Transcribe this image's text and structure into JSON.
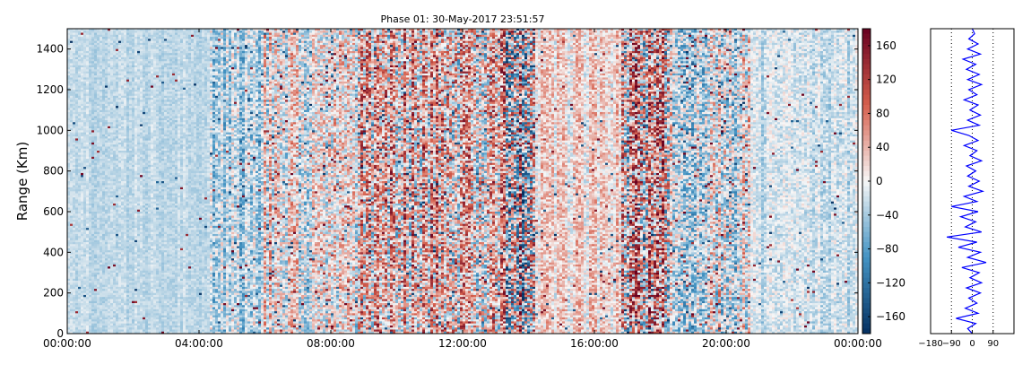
{
  "chart_data": [
    {
      "type": "heatmap",
      "title": "Phase 01: 30-May-2017 23:51:57",
      "xlabel": "",
      "ylabel": "Range (Km)",
      "xlim": [
        "00:00:00",
        "00:00:00"
      ],
      "ylim": [
        0,
        1500
      ],
      "x_ticks": [
        "00:00:00",
        "04:00:00",
        "08:00:00",
        "12:00:00",
        "16:00:00",
        "20:00:00",
        "00:00:00"
      ],
      "y_ticks": [
        0,
        200,
        400,
        600,
        800,
        1000,
        1200,
        1400
      ],
      "colormap": "RdBu_r",
      "color_min": "#053061",
      "color_mid": "#f7f7f7",
      "color_max": "#67001f",
      "colorbar": {
        "range": [
          -180,
          180
        ],
        "ticks": [
          -160,
          -120,
          -80,
          -40,
          0,
          40,
          80,
          120,
          160
        ]
      },
      "column_activity": [
        {
          "from_hour": 0,
          "to_hour": 4.3,
          "level": 0.1,
          "bias": -0.25
        },
        {
          "from_hour": 4.3,
          "to_hour": 6.0,
          "level": 0.35,
          "bias": -0.3
        },
        {
          "from_hour": 6.0,
          "to_hour": 8.8,
          "level": 0.45,
          "bias": 0.05
        },
        {
          "from_hour": 8.8,
          "to_hour": 13.3,
          "level": 0.65,
          "bias": 0.3
        },
        {
          "from_hour": 13.3,
          "to_hour": 14.2,
          "level": 1.0,
          "bias": 0.0
        },
        {
          "from_hour": 14.2,
          "to_hour": 16.8,
          "level": 0.3,
          "bias": 0.15
        },
        {
          "from_hour": 16.8,
          "to_hour": 18.3,
          "level": 0.85,
          "bias": 0.4
        },
        {
          "from_hour": 18.3,
          "to_hour": 20.7,
          "level": 0.5,
          "bias": -0.1
        },
        {
          "from_hour": 20.7,
          "to_hour": 24.0,
          "level": 0.2,
          "bias": -0.2
        }
      ]
    },
    {
      "type": "line",
      "title": "",
      "xlabel": "",
      "ylabel": "",
      "xlim": [
        -180,
        180
      ],
      "ylim": [
        0,
        1500
      ],
      "x_ticks": [
        "−180",
        "−90",
        "0",
        "90"
      ],
      "x_tick_values": [
        -180,
        -90,
        0,
        90
      ],
      "color": "#0000ff",
      "series": [
        {
          "y": [
            0,
            25,
            50,
            75,
            100,
            125,
            150,
            175,
            200,
            225,
            250,
            275,
            300,
            325,
            350,
            375,
            400,
            425,
            450,
            475,
            500,
            525,
            550,
            575,
            600,
            625,
            650,
            675,
            700,
            725,
            750,
            775,
            800,
            825,
            850,
            875,
            900,
            925,
            950,
            975,
            1000,
            1025,
            1050,
            1075,
            1100,
            1125,
            1150,
            1175,
            1200,
            1225,
            1250,
            1275,
            1300,
            1325,
            1350,
            1375,
            1400,
            1425,
            1450,
            1475,
            1500
          ],
          "x": [
            0,
            -20,
            15,
            -70,
            25,
            -30,
            20,
            -15,
            35,
            -25,
            40,
            -10,
            30,
            -45,
            60,
            -20,
            35,
            -60,
            20,
            -110,
            40,
            -30,
            15,
            -50,
            25,
            -90,
            20,
            -35,
            45,
            -15,
            30,
            -20,
            15,
            -25,
            40,
            -10,
            20,
            -35,
            25,
            -15,
            -90,
            30,
            -20,
            35,
            -10,
            25,
            -35,
            20,
            -15,
            40,
            -20,
            30,
            -25,
            15,
            -40,
            35,
            -20,
            25,
            -15,
            10,
            0
          ]
        }
      ]
    }
  ]
}
